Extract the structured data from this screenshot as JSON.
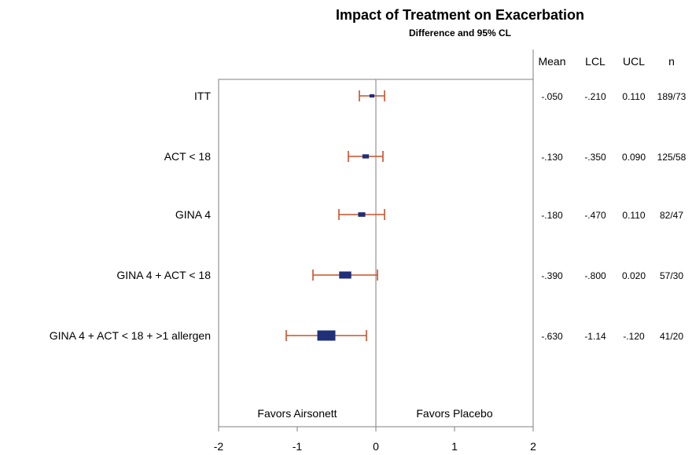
{
  "chart_data": {
    "type": "forest",
    "title": "Impact of Treatment on Exacerbation",
    "subtitle": "Difference and 95% CL",
    "xlim": [
      -2,
      2
    ],
    "xticks": [
      "-2",
      "-1",
      "0",
      "1",
      "2"
    ],
    "reference_line": 0,
    "favor_left": "Favors Airsonett",
    "favor_right": "Favors Placebo",
    "columns": [
      "Mean",
      "LCL",
      "UCL",
      "n"
    ],
    "rows": [
      {
        "label": "ITT",
        "mean": -0.05,
        "lcl": -0.21,
        "ucl": 0.11,
        "weight": 1,
        "mean_txt": "-.050",
        "lcl_txt": "-.210",
        "ucl_txt": "0.110",
        "n_txt": "189/73"
      },
      {
        "label": "ACT < 18",
        "mean": -0.13,
        "lcl": -0.35,
        "ucl": 0.09,
        "weight": 1.5,
        "mean_txt": "-.130",
        "lcl_txt": "-.350",
        "ucl_txt": "0.090",
        "n_txt": "125/58"
      },
      {
        "label": "GINA 4",
        "mean": -0.18,
        "lcl": -0.47,
        "ucl": 0.11,
        "weight": 1.7,
        "mean_txt": "-.180",
        "lcl_txt": "-.470",
        "ucl_txt": "0.110",
        "n_txt": "82/47"
      },
      {
        "label": "GINA 4 + ACT < 18",
        "mean": -0.39,
        "lcl": -0.8,
        "ucl": 0.02,
        "weight": 3.2,
        "mean_txt": "-.390",
        "lcl_txt": "-.800",
        "ucl_txt": "0.020",
        "n_txt": "57/30"
      },
      {
        "label": "GINA 4 + ACT < 18 + >1 allergen",
        "mean": -0.63,
        "lcl": -1.14,
        "ucl": -0.12,
        "weight": 5,
        "mean_txt": "-.630",
        "lcl_txt": "-1.14",
        "ucl_txt": "-.120",
        "n_txt": "41/20"
      }
    ],
    "colors": {
      "marker": "#1f2f7a",
      "ci": "#c8502a",
      "axis": "#7f7f7f",
      "refline": "#7f7f7f"
    }
  }
}
